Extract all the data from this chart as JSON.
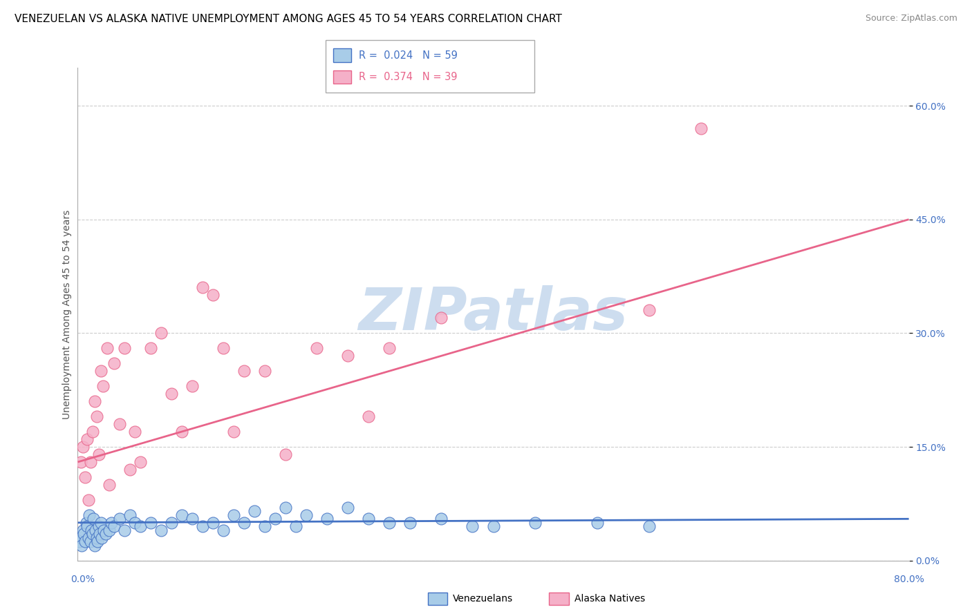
{
  "title": "VENEZUELAN VS ALASKA NATIVE UNEMPLOYMENT AMONG AGES 45 TO 54 YEARS CORRELATION CHART",
  "source": "Source: ZipAtlas.com",
  "ylabel": "Unemployment Among Ages 45 to 54 years",
  "ytick_values": [
    0,
    15,
    30,
    45,
    60
  ],
  "xlim": [
    0,
    80
  ],
  "ylim": [
    0,
    65
  ],
  "venezuelan_R": 0.024,
  "venezuelan_N": 59,
  "alaska_R": 0.374,
  "alaska_N": 39,
  "venezuelan_color": "#a8cce8",
  "alaska_color": "#f5b0c8",
  "venezuelan_edge_color": "#4472c4",
  "alaska_edge_color": "#e8648a",
  "venezuelan_line_color": "#4472c4",
  "alaska_line_color": "#e8648a",
  "watermark_text": "ZIPatlas",
  "watermark_color": "#c5d8ed",
  "venezuelan_x": [
    0.2,
    0.3,
    0.4,
    0.5,
    0.6,
    0.7,
    0.8,
    0.9,
    1.0,
    1.1,
    1.2,
    1.3,
    1.4,
    1.5,
    1.6,
    1.7,
    1.8,
    1.9,
    2.0,
    2.1,
    2.2,
    2.3,
    2.5,
    2.7,
    3.0,
    3.2,
    3.5,
    4.0,
    4.5,
    5.0,
    5.5,
    6.0,
    7.0,
    8.0,
    9.0,
    10.0,
    11.0,
    12.0,
    13.0,
    14.0,
    15.0,
    16.0,
    17.0,
    18.0,
    19.0,
    20.0,
    21.0,
    22.0,
    24.0,
    26.0,
    28.0,
    30.0,
    32.0,
    35.0,
    38.0,
    40.0,
    44.0,
    50.0,
    55.0
  ],
  "venezuelan_y": [
    2.5,
    3.0,
    2.0,
    4.0,
    3.5,
    2.5,
    5.0,
    4.5,
    3.0,
    6.0,
    2.5,
    4.0,
    3.5,
    5.5,
    2.0,
    4.0,
    3.0,
    2.5,
    4.5,
    3.5,
    5.0,
    3.0,
    4.0,
    3.5,
    4.0,
    5.0,
    4.5,
    5.5,
    4.0,
    6.0,
    5.0,
    4.5,
    5.0,
    4.0,
    5.0,
    6.0,
    5.5,
    4.5,
    5.0,
    4.0,
    6.0,
    5.0,
    6.5,
    4.5,
    5.5,
    7.0,
    4.5,
    6.0,
    5.5,
    7.0,
    5.5,
    5.0,
    5.0,
    5.5,
    4.5,
    4.5,
    5.0,
    5.0,
    4.5
  ],
  "alaska_x": [
    0.3,
    0.5,
    0.7,
    0.9,
    1.0,
    1.2,
    1.4,
    1.6,
    1.8,
    2.0,
    2.2,
    2.4,
    2.8,
    3.0,
    3.5,
    4.0,
    4.5,
    5.0,
    5.5,
    6.0,
    7.0,
    8.0,
    9.0,
    10.0,
    11.0,
    12.0,
    13.0,
    14.0,
    15.0,
    16.0,
    18.0,
    20.0,
    23.0,
    26.0,
    28.0,
    30.0,
    35.0,
    55.0,
    60.0
  ],
  "alaska_y": [
    13.0,
    15.0,
    11.0,
    16.0,
    8.0,
    13.0,
    17.0,
    21.0,
    19.0,
    14.0,
    25.0,
    23.0,
    28.0,
    10.0,
    26.0,
    18.0,
    28.0,
    12.0,
    17.0,
    13.0,
    28.0,
    30.0,
    22.0,
    17.0,
    23.0,
    36.0,
    35.0,
    28.0,
    17.0,
    25.0,
    25.0,
    14.0,
    28.0,
    27.0,
    19.0,
    28.0,
    32.0,
    33.0,
    57.0
  ],
  "alaska_line_y0": 13.0,
  "alaska_line_y80": 45.0,
  "venezuelan_line_y0": 5.0,
  "venezuelan_line_y80": 5.5,
  "title_fontsize": 11,
  "tick_fontsize": 10,
  "ylabel_fontsize": 10,
  "source_fontsize": 9,
  "marker_size": 150
}
